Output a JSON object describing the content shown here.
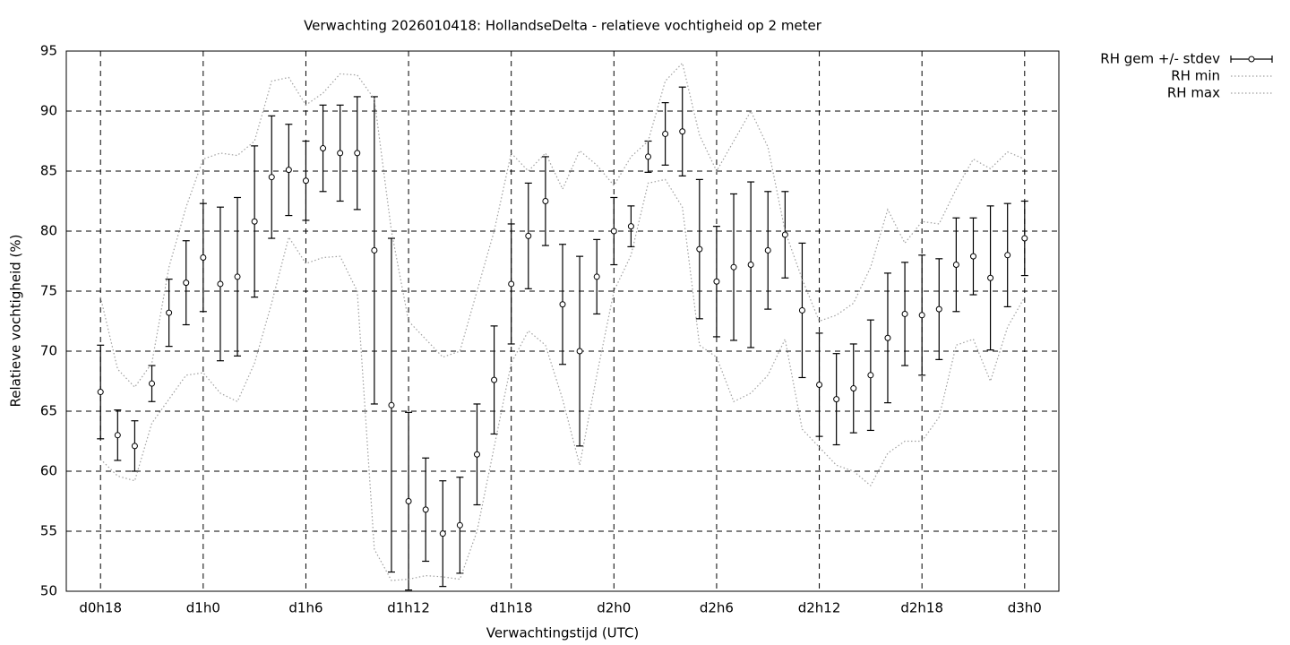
{
  "chart_data": {
    "type": "errorbar",
    "title": "Verwachting 2026010418: HollandseDelta - relatieve vochtigheid op 2 meter",
    "x_label": "Verwachtingstijd (UTC)",
    "y_label": "Relatieve vochtigheid (%)",
    "x": [
      18,
      19,
      20,
      21,
      22,
      23,
      24,
      25,
      26,
      27,
      28,
      29,
      30,
      31,
      32,
      33,
      34,
      35,
      36,
      37,
      38,
      39,
      40,
      41,
      42,
      43,
      44,
      45,
      46,
      47,
      48,
      49,
      50,
      51,
      52,
      53,
      54,
      55,
      56,
      57,
      58,
      59,
      60,
      61,
      62,
      63,
      64,
      65,
      66,
      67,
      68,
      69,
      70,
      71,
      72
    ],
    "series": [
      {
        "name": "RH gem +/- stdev",
        "style": "errorbars",
        "color": "#000000",
        "values": [
          66.6,
          63.0,
          62.1,
          67.3,
          73.2,
          75.7,
          77.8,
          75.6,
          76.2,
          80.8,
          84.5,
          85.1,
          84.2,
          86.9,
          86.5,
          86.5,
          78.4,
          65.5,
          57.5,
          56.8,
          54.8,
          55.5,
          61.4,
          67.6,
          75.6,
          79.6,
          82.5,
          73.9,
          70.0,
          76.2,
          80.0,
          80.4,
          86.2,
          88.1,
          88.3,
          78.5,
          75.8,
          77.0,
          77.2,
          78.4,
          79.7,
          73.4,
          67.2,
          66.0,
          66.9,
          68.0,
          71.1,
          73.1,
          73.0,
          73.5,
          77.2,
          77.9,
          76.1,
          78.0,
          79.4
        ],
        "errors": [
          3.9,
          2.1,
          2.1,
          1.5,
          2.8,
          3.5,
          4.5,
          6.4,
          6.6,
          6.3,
          5.1,
          3.8,
          3.3,
          3.6,
          4.0,
          4.7,
          12.8,
          13.9,
          7.4,
          4.3,
          4.4,
          4.0,
          4.2,
          4.5,
          5.0,
          4.4,
          3.7,
          5.0,
          7.9,
          3.1,
          2.8,
          1.7,
          1.3,
          2.6,
          3.7,
          5.8,
          4.6,
          6.1,
          6.9,
          4.9,
          3.6,
          5.6,
          4.3,
          3.8,
          3.7,
          4.6,
          5.4,
          4.3,
          5.0,
          4.2,
          3.9,
          3.2,
          6.0,
          4.3,
          3.1
        ]
      },
      {
        "name": "RH min",
        "style": "dotted",
        "color": "#a0a0a0",
        "values": [
          61,
          59.6,
          59.2,
          64,
          66,
          68,
          68.2,
          66.5,
          65.8,
          69,
          74,
          79.5,
          77.3,
          77.8,
          77.9,
          75,
          53.5,
          50.9,
          51.0,
          51.3,
          51.2,
          51.0,
          55,
          62,
          69,
          71.7,
          70.5,
          66,
          60.5,
          68,
          75,
          78,
          84,
          84.3,
          82,
          70.5,
          69.5,
          65.8,
          66.5,
          68,
          71,
          63.5,
          62,
          60.5,
          60,
          58.8,
          61.5,
          62.5,
          62.5,
          64.5,
          70.5,
          71,
          67.5,
          72,
          74.5
        ]
      },
      {
        "name": "RH max",
        "style": "dotted",
        "color": "#a0a0a0",
        "values": [
          74.5,
          68.5,
          67,
          69,
          77,
          82,
          86,
          86.5,
          86.3,
          87.5,
          92.5,
          92.8,
          90.5,
          91.5,
          93.1,
          93,
          91,
          80,
          72.5,
          71,
          69.5,
          70,
          75,
          80,
          86.5,
          85,
          86.5,
          83.5,
          86.7,
          85.5,
          83.8,
          86.2,
          87.5,
          92.5,
          94,
          88,
          85,
          87.5,
          90,
          87,
          80,
          76,
          72.5,
          73,
          74,
          77,
          81.8,
          79,
          80.8,
          80.6,
          83.5,
          86,
          85.2,
          86.6,
          86
        ]
      }
    ],
    "xlim": [
      16,
      74
    ],
    "xticks": [
      {
        "value": 18,
        "label": "d0h18"
      },
      {
        "value": 24,
        "label": "d1h0"
      },
      {
        "value": 30,
        "label": "d1h6"
      },
      {
        "value": 36,
        "label": "d1h12"
      },
      {
        "value": 42,
        "label": "d1h18"
      },
      {
        "value": 48,
        "label": "d2h0"
      },
      {
        "value": 54,
        "label": "d2h6"
      },
      {
        "value": 60,
        "label": "d2h12"
      },
      {
        "value": 66,
        "label": "d2h18"
      },
      {
        "value": 72,
        "label": "d3h0"
      }
    ],
    "ylim": [
      50,
      95
    ],
    "yticks": [
      50,
      55,
      60,
      65,
      70,
      75,
      80,
      85,
      90,
      95
    ],
    "grid": true,
    "legend": "top-right"
  }
}
